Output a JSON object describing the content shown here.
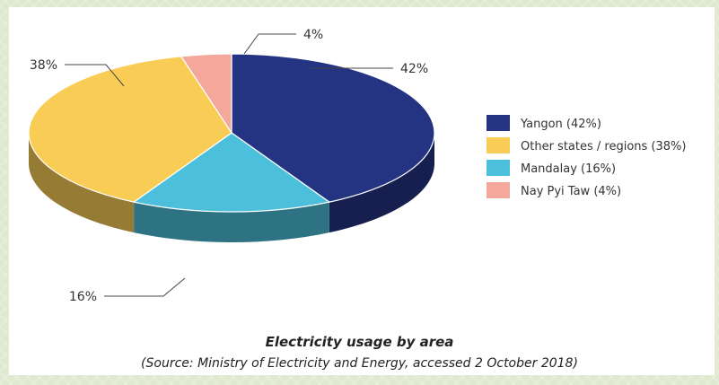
{
  "chart_data": {
    "type": "pie",
    "slices": [
      {
        "label": "Yangon",
        "value": 42,
        "display": "42%",
        "color": "#253383",
        "legend": "Yangon (42%)"
      },
      {
        "label": "Mandalay",
        "value": 16,
        "display": "16%",
        "color": "#4bbfdb",
        "legend": "Mandalay (16%)"
      },
      {
        "label": "Other states / regions",
        "value": 38,
        "display": "38%",
        "color": "#f9cd55",
        "legend": "Other states / regions (38%)"
      },
      {
        "label": "Nay Pyi Taw",
        "value": 4,
        "display": "4%",
        "color": "#f4a79a",
        "legend": "Nay Pyi Taw (4%)"
      }
    ],
    "title": "Electricity usage by area",
    "source": "(Source: Ministry of Electricity and Energy, accessed 2 October 2018)",
    "style": "3d-tilted",
    "legend_position": "right"
  }
}
